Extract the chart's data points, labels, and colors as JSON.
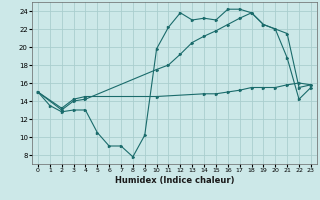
{
  "xlabel": "Humidex (Indice chaleur)",
  "ylabel": "",
  "xlim": [
    -0.5,
    23.5
  ],
  "ylim": [
    7,
    25
  ],
  "xticks": [
    0,
    1,
    2,
    3,
    4,
    5,
    6,
    7,
    8,
    9,
    10,
    11,
    12,
    13,
    14,
    15,
    16,
    17,
    18,
    19,
    20,
    21,
    22,
    23
  ],
  "yticks": [
    8,
    10,
    12,
    14,
    16,
    18,
    20,
    22,
    24
  ],
  "background_color": "#cce8e8",
  "grid_color": "#aacece",
  "line_color": "#1a6b6b",
  "line1_x": [
    0,
    1,
    2,
    3,
    4,
    5,
    6,
    7,
    8,
    9,
    10,
    11,
    12,
    13,
    14,
    15,
    16,
    17,
    18,
    19,
    20,
    21,
    22,
    23
  ],
  "line1_y": [
    15.0,
    13.5,
    12.8,
    13.0,
    13.0,
    10.5,
    9.0,
    9.0,
    7.8,
    10.2,
    19.8,
    22.2,
    23.8,
    23.0,
    23.2,
    23.0,
    24.2,
    24.2,
    23.8,
    22.5,
    22.0,
    18.8,
    14.2,
    15.5
  ],
  "line2_x": [
    0,
    2,
    3,
    4,
    10,
    11,
    12,
    13,
    14,
    15,
    16,
    17,
    18,
    19,
    20,
    21,
    22,
    23
  ],
  "line2_y": [
    15.0,
    13.0,
    14.0,
    14.2,
    17.5,
    18.0,
    19.2,
    20.5,
    21.2,
    21.8,
    22.5,
    23.2,
    23.8,
    22.5,
    22.0,
    21.5,
    15.5,
    15.8
  ],
  "line3_x": [
    0,
    2,
    3,
    4,
    10,
    14,
    15,
    16,
    17,
    18,
    19,
    20,
    21,
    22,
    23
  ],
  "line3_y": [
    15.0,
    13.2,
    14.2,
    14.5,
    14.5,
    14.8,
    14.8,
    15.0,
    15.2,
    15.5,
    15.5,
    15.5,
    15.8,
    16.0,
    15.8
  ]
}
